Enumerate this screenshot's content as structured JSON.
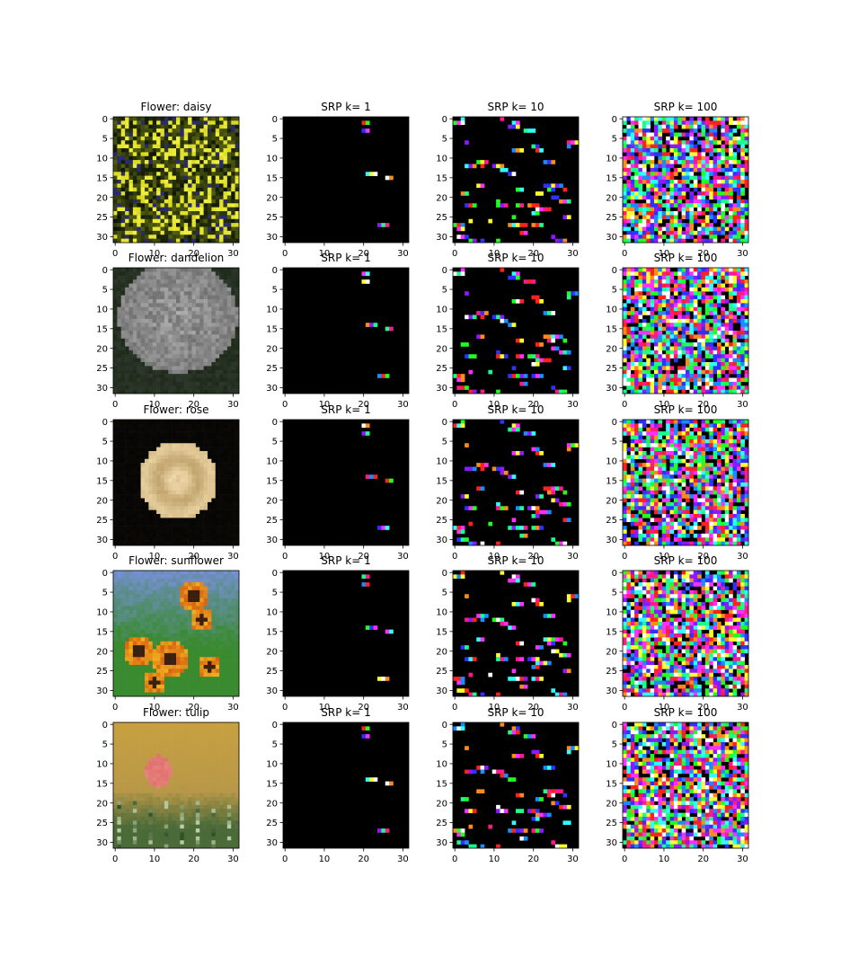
{
  "chart_data": {
    "type": "heatmap",
    "grid": false,
    "legend": "none",
    "image_size": [
      32,
      32
    ],
    "xlim": [
      0,
      31
    ],
    "ylim": [
      31,
      0
    ],
    "x_ticks": [
      0,
      10,
      20,
      30
    ],
    "y_ticks": [
      0,
      5,
      10,
      15,
      20,
      25,
      30
    ],
    "column_titles": [
      "Flower: daisy",
      "SRP k= 1",
      "SRP k= 10",
      "SRP k= 100"
    ],
    "rows": [
      {
        "flower_title": "Flower: daisy",
        "srp_titles": [
          "SRP k= 1",
          "SRP k= 10",
          "SRP k= 100"
        ]
      },
      {
        "flower_title": "Flower: dandelion",
        "srp_titles": [
          "SRP k= 1",
          "SRP k= 10",
          "SRP k= 100"
        ]
      },
      {
        "flower_title": "Flower: rose",
        "srp_titles": [
          "SRP k= 1",
          "SRP k= 10",
          "SRP k= 100"
        ]
      },
      {
        "flower_title": "Flower: sunflower",
        "srp_titles": [
          "SRP k= 1",
          "SRP k= 10",
          "SRP k= 100"
        ]
      },
      {
        "flower_title": "Flower: tulip",
        "srp_titles": [
          "SRP k= 1",
          "SRP k= 10",
          "SRP k= 100"
        ]
      }
    ],
    "k_values": [
      1,
      10,
      100
    ],
    "srp_k1_segments": [
      {
        "x": 20,
        "y": 1,
        "len": 2
      },
      {
        "x": 20,
        "y": 3,
        "len": 2
      },
      {
        "x": 21,
        "y": 14,
        "len": 3
      },
      {
        "x": 26,
        "y": 15,
        "len": 2
      },
      {
        "x": 24,
        "y": 27,
        "len": 3
      }
    ],
    "colors": {
      "background": "#000000",
      "palette": [
        "#ff2020",
        "#20ff20",
        "#3030ff",
        "#ff30ff",
        "#30ffff",
        "#ffff30",
        "#ffffff",
        "#ff8c1a",
        "#8c1aff",
        "#1aff8c",
        "#ff1a8c",
        "#1a8cff"
      ],
      "daisy": {
        "bg": "#1a2a08",
        "dark": "#0c1404",
        "flower": "#d8d820",
        "mid": "#556010",
        "accent": "#2a2a70"
      },
      "dandelion": {
        "bg": "#1c2a18",
        "fluff": "#8a8a8a",
        "light": "#b8b8b8",
        "dark": "#4a4a4a"
      },
      "rose": {
        "bg": "#050505",
        "petal": "#e8c888",
        "shadow": "#a88850",
        "light": "#f5e0b0"
      },
      "sunflower": {
        "sky": "#7a90e0",
        "leaf": "#3a8a30",
        "yellow": "#f0b020",
        "orange": "#d86010",
        "dark": "#3a2010"
      },
      "tulip": {
        "top": "#c8a040",
        "mid": "#b89848",
        "bottom": "#4a6a38",
        "petal": "#e07070",
        "stem": "#2a4a20"
      }
    }
  }
}
